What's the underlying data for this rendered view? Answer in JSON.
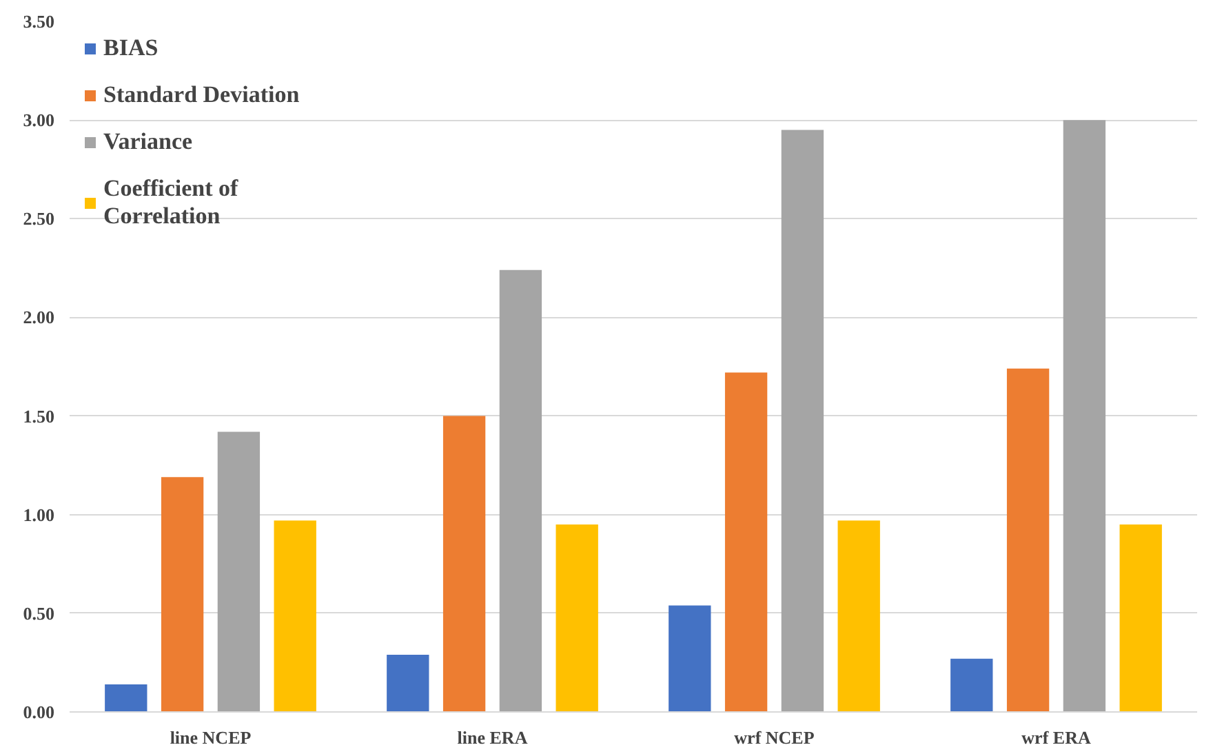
{
  "chart_data": {
    "type": "bar",
    "categories": [
      "line NCEP",
      "line ERA",
      "wrf NCEP",
      "wrf ERA"
    ],
    "series": [
      {
        "name": "BIAS",
        "color": "#4472c4",
        "values": [
          0.14,
          0.29,
          0.54,
          0.27
        ]
      },
      {
        "name": "Standard Deviation",
        "color": "#ed7d31",
        "values": [
          1.19,
          1.5,
          1.72,
          1.74
        ]
      },
      {
        "name": "Variance",
        "color": "#a5a5a5",
        "values": [
          1.42,
          2.24,
          2.95,
          3.0
        ]
      },
      {
        "name": "Coefficient of\nCorrelation",
        "color": "#ffc000",
        "values": [
          0.97,
          0.95,
          0.97,
          0.95
        ]
      }
    ],
    "ylim": [
      0,
      3.5
    ],
    "yticks": [
      {
        "value": 0,
        "label": "0.00"
      },
      {
        "value": 0.5,
        "label": "0.50"
      },
      {
        "value": 1,
        "label": "1.00"
      },
      {
        "value": 1.5,
        "label": "1.50"
      },
      {
        "value": 2,
        "label": "2.00"
      },
      {
        "value": 2.5,
        "label": "2.50"
      },
      {
        "value": 3,
        "label": "3.00"
      },
      {
        "value": 3.5,
        "label": "3.50"
      }
    ],
    "grid": "y",
    "legend": "top left"
  }
}
